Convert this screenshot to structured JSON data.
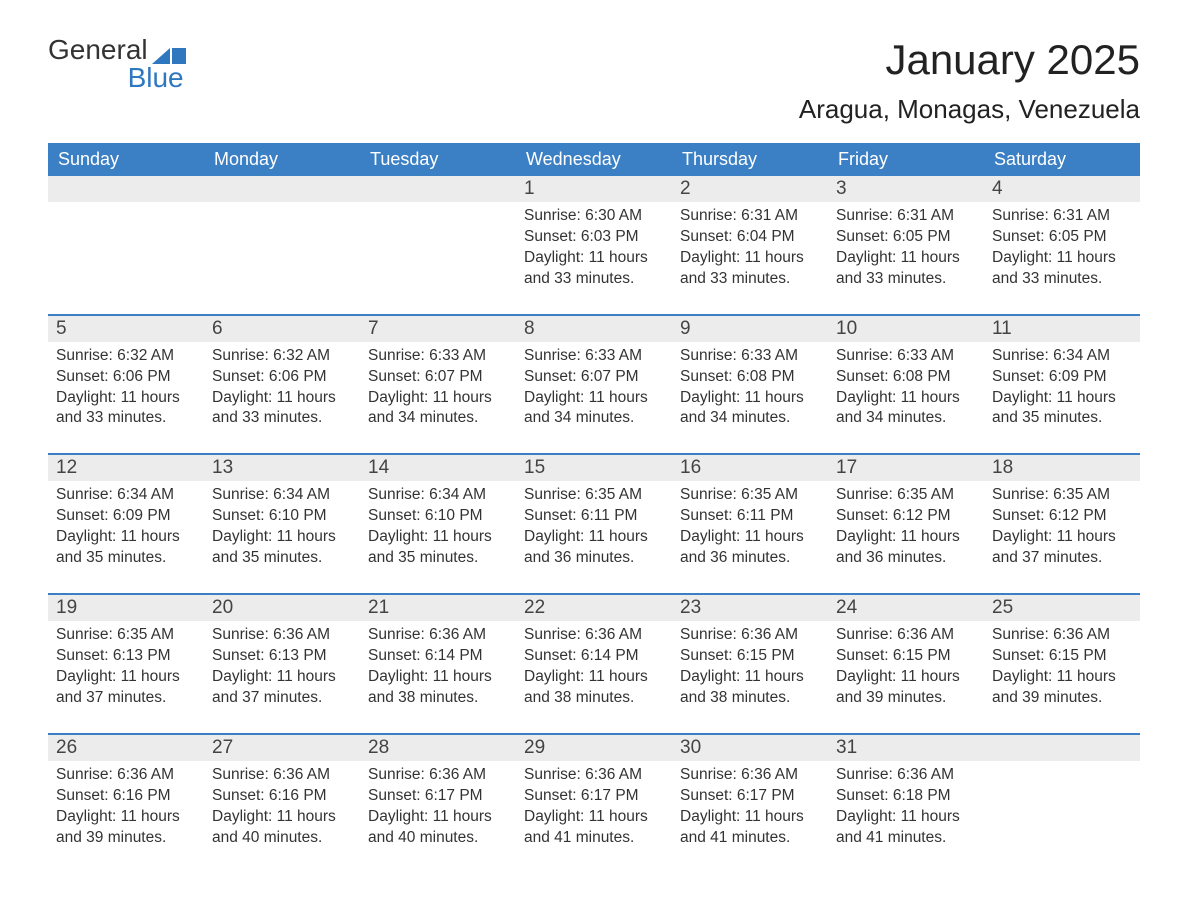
{
  "logo": {
    "line1": "General",
    "line2": "Blue",
    "accent_color": "#2f78bf"
  },
  "title": {
    "month": "January 2025",
    "location": "Aragua, Monagas, Venezuela"
  },
  "theme": {
    "header_bg": "#3b7fc4",
    "header_fg": "#ffffff",
    "daynum_bg": "#ececec",
    "text_color": "#333333",
    "week_border": "#3b7fc4"
  },
  "days_of_week": [
    "Sunday",
    "Monday",
    "Tuesday",
    "Wednesday",
    "Thursday",
    "Friday",
    "Saturday"
  ],
  "weeks": [
    [
      null,
      null,
      null,
      {
        "n": "1",
        "sr": "Sunrise: 6:30 AM",
        "ss": "Sunset: 6:03 PM",
        "dl": "Daylight: 11 hours and 33 minutes."
      },
      {
        "n": "2",
        "sr": "Sunrise: 6:31 AM",
        "ss": "Sunset: 6:04 PM",
        "dl": "Daylight: 11 hours and 33 minutes."
      },
      {
        "n": "3",
        "sr": "Sunrise: 6:31 AM",
        "ss": "Sunset: 6:05 PM",
        "dl": "Daylight: 11 hours and 33 minutes."
      },
      {
        "n": "4",
        "sr": "Sunrise: 6:31 AM",
        "ss": "Sunset: 6:05 PM",
        "dl": "Daylight: 11 hours and 33 minutes."
      }
    ],
    [
      {
        "n": "5",
        "sr": "Sunrise: 6:32 AM",
        "ss": "Sunset: 6:06 PM",
        "dl": "Daylight: 11 hours and 33 minutes."
      },
      {
        "n": "6",
        "sr": "Sunrise: 6:32 AM",
        "ss": "Sunset: 6:06 PM",
        "dl": "Daylight: 11 hours and 33 minutes."
      },
      {
        "n": "7",
        "sr": "Sunrise: 6:33 AM",
        "ss": "Sunset: 6:07 PM",
        "dl": "Daylight: 11 hours and 34 minutes."
      },
      {
        "n": "8",
        "sr": "Sunrise: 6:33 AM",
        "ss": "Sunset: 6:07 PM",
        "dl": "Daylight: 11 hours and 34 minutes."
      },
      {
        "n": "9",
        "sr": "Sunrise: 6:33 AM",
        "ss": "Sunset: 6:08 PM",
        "dl": "Daylight: 11 hours and 34 minutes."
      },
      {
        "n": "10",
        "sr": "Sunrise: 6:33 AM",
        "ss": "Sunset: 6:08 PM",
        "dl": "Daylight: 11 hours and 34 minutes."
      },
      {
        "n": "11",
        "sr": "Sunrise: 6:34 AM",
        "ss": "Sunset: 6:09 PM",
        "dl": "Daylight: 11 hours and 35 minutes."
      }
    ],
    [
      {
        "n": "12",
        "sr": "Sunrise: 6:34 AM",
        "ss": "Sunset: 6:09 PM",
        "dl": "Daylight: 11 hours and 35 minutes."
      },
      {
        "n": "13",
        "sr": "Sunrise: 6:34 AM",
        "ss": "Sunset: 6:10 PM",
        "dl": "Daylight: 11 hours and 35 minutes."
      },
      {
        "n": "14",
        "sr": "Sunrise: 6:34 AM",
        "ss": "Sunset: 6:10 PM",
        "dl": "Daylight: 11 hours and 35 minutes."
      },
      {
        "n": "15",
        "sr": "Sunrise: 6:35 AM",
        "ss": "Sunset: 6:11 PM",
        "dl": "Daylight: 11 hours and 36 minutes."
      },
      {
        "n": "16",
        "sr": "Sunrise: 6:35 AM",
        "ss": "Sunset: 6:11 PM",
        "dl": "Daylight: 11 hours and 36 minutes."
      },
      {
        "n": "17",
        "sr": "Sunrise: 6:35 AM",
        "ss": "Sunset: 6:12 PM",
        "dl": "Daylight: 11 hours and 36 minutes."
      },
      {
        "n": "18",
        "sr": "Sunrise: 6:35 AM",
        "ss": "Sunset: 6:12 PM",
        "dl": "Daylight: 11 hours and 37 minutes."
      }
    ],
    [
      {
        "n": "19",
        "sr": "Sunrise: 6:35 AM",
        "ss": "Sunset: 6:13 PM",
        "dl": "Daylight: 11 hours and 37 minutes."
      },
      {
        "n": "20",
        "sr": "Sunrise: 6:36 AM",
        "ss": "Sunset: 6:13 PM",
        "dl": "Daylight: 11 hours and 37 minutes."
      },
      {
        "n": "21",
        "sr": "Sunrise: 6:36 AM",
        "ss": "Sunset: 6:14 PM",
        "dl": "Daylight: 11 hours and 38 minutes."
      },
      {
        "n": "22",
        "sr": "Sunrise: 6:36 AM",
        "ss": "Sunset: 6:14 PM",
        "dl": "Daylight: 11 hours and 38 minutes."
      },
      {
        "n": "23",
        "sr": "Sunrise: 6:36 AM",
        "ss": "Sunset: 6:15 PM",
        "dl": "Daylight: 11 hours and 38 minutes."
      },
      {
        "n": "24",
        "sr": "Sunrise: 6:36 AM",
        "ss": "Sunset: 6:15 PM",
        "dl": "Daylight: 11 hours and 39 minutes."
      },
      {
        "n": "25",
        "sr": "Sunrise: 6:36 AM",
        "ss": "Sunset: 6:15 PM",
        "dl": "Daylight: 11 hours and 39 minutes."
      }
    ],
    [
      {
        "n": "26",
        "sr": "Sunrise: 6:36 AM",
        "ss": "Sunset: 6:16 PM",
        "dl": "Daylight: 11 hours and 39 minutes."
      },
      {
        "n": "27",
        "sr": "Sunrise: 6:36 AM",
        "ss": "Sunset: 6:16 PM",
        "dl": "Daylight: 11 hours and 40 minutes."
      },
      {
        "n": "28",
        "sr": "Sunrise: 6:36 AM",
        "ss": "Sunset: 6:17 PM",
        "dl": "Daylight: 11 hours and 40 minutes."
      },
      {
        "n": "29",
        "sr": "Sunrise: 6:36 AM",
        "ss": "Sunset: 6:17 PM",
        "dl": "Daylight: 11 hours and 41 minutes."
      },
      {
        "n": "30",
        "sr": "Sunrise: 6:36 AM",
        "ss": "Sunset: 6:17 PM",
        "dl": "Daylight: 11 hours and 41 minutes."
      },
      {
        "n": "31",
        "sr": "Sunrise: 6:36 AM",
        "ss": "Sunset: 6:18 PM",
        "dl": "Daylight: 11 hours and 41 minutes."
      },
      null
    ]
  ]
}
